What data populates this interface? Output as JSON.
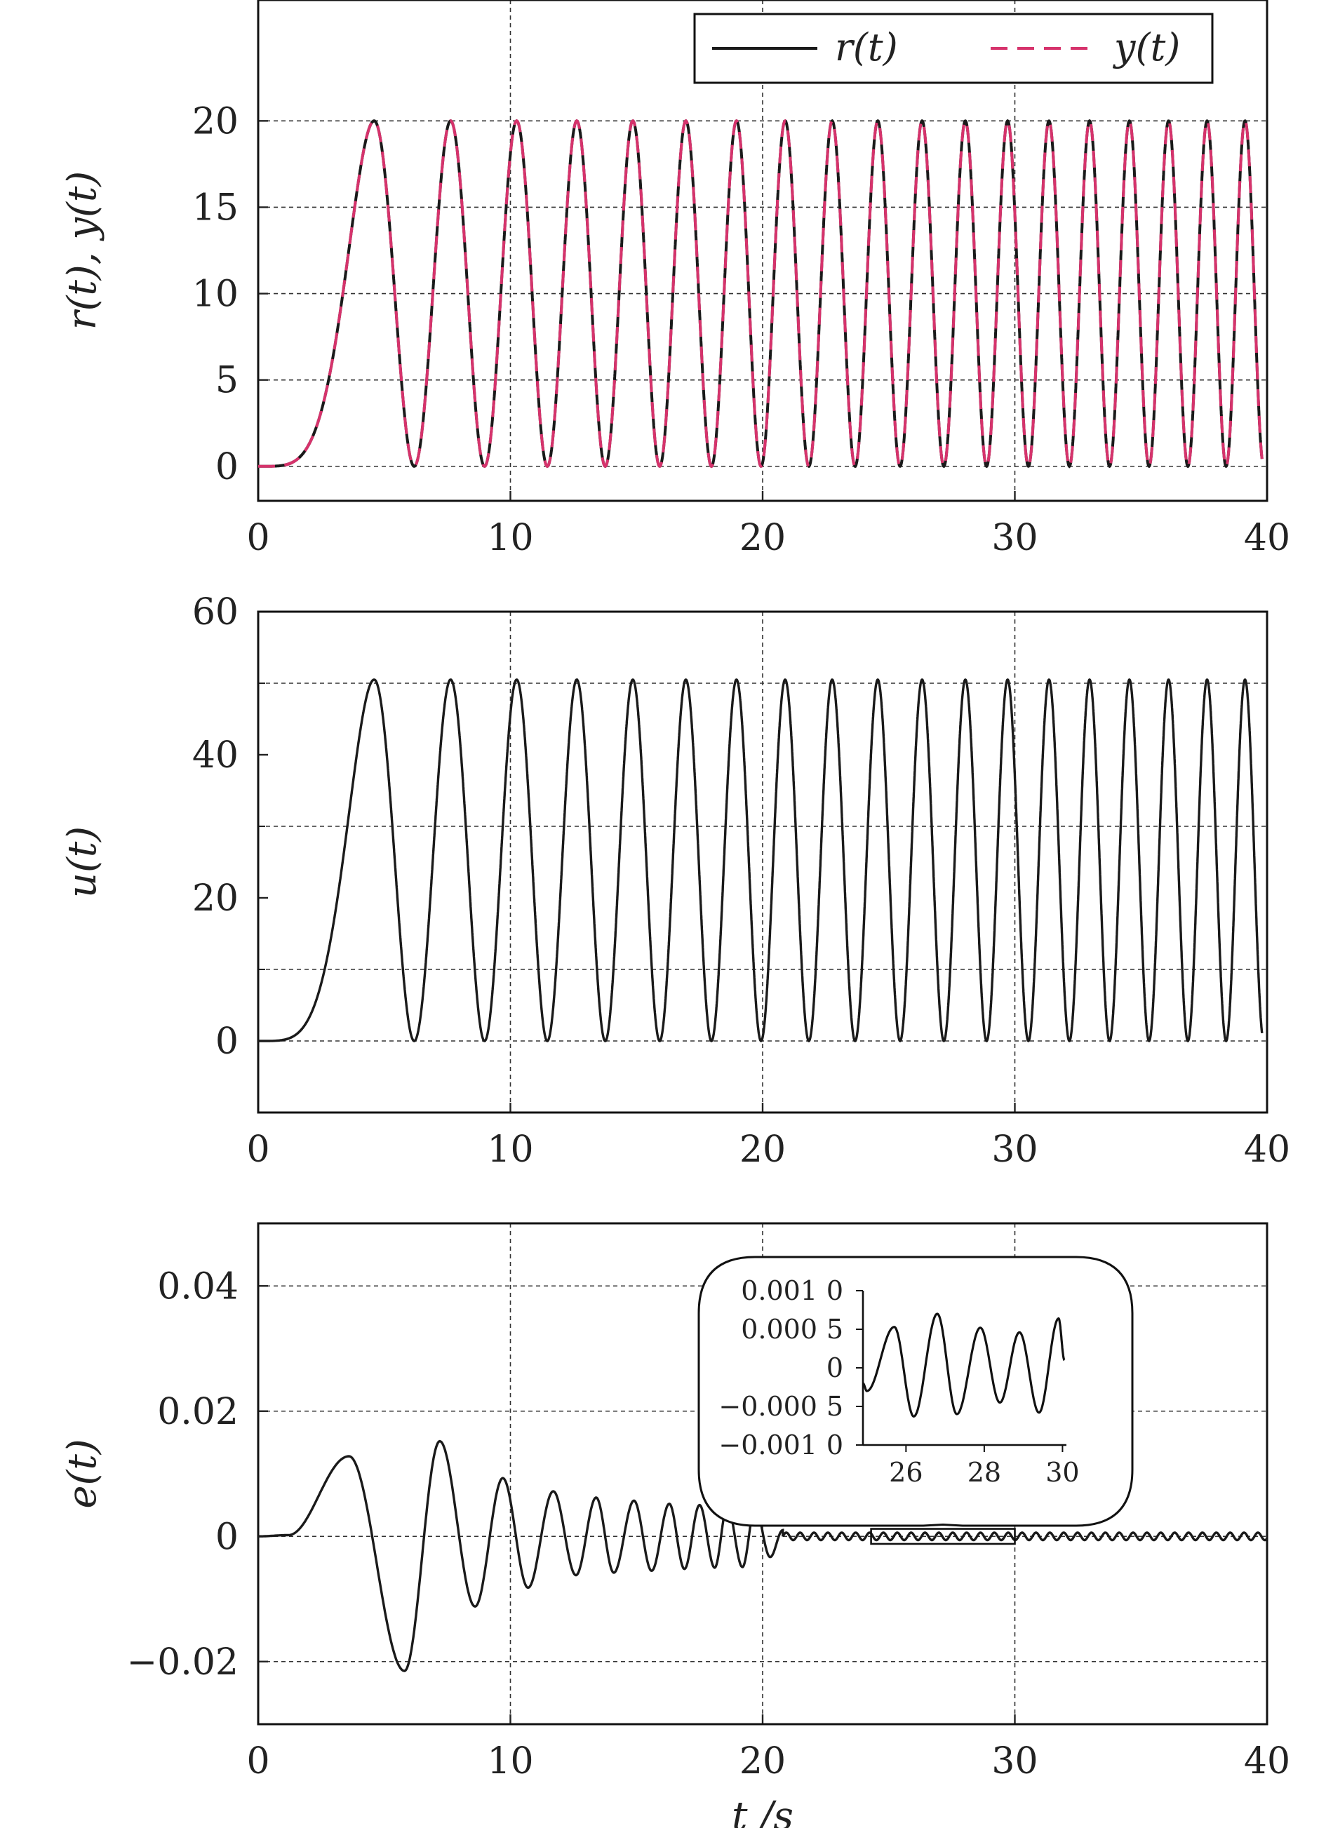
{
  "chart_data": [
    {
      "type": "line",
      "id": "tracking",
      "ylabel": "r(t), y(t)",
      "xlabel": "",
      "xlim": [
        0,
        40
      ],
      "ylim": [
        -2,
        27
      ],
      "xticks": [
        0,
        10,
        20,
        30,
        40
      ],
      "xtick_labels": [
        "0",
        "10",
        "20",
        "30",
        "40"
      ],
      "yticks": [
        0,
        5,
        10,
        15,
        20
      ],
      "ytick_labels": [
        "0",
        "5",
        "10",
        "15",
        "20"
      ],
      "grid": true,
      "legend_position": "top-right",
      "series": [
        {
          "name": "r(t)",
          "style": "solid",
          "color": "#1a1a1a",
          "function": "10*(1-cos(0.03*x*x*x))",
          "note_x_range": [
            0,
            40
          ]
        },
        {
          "name": "y(t)",
          "style": "dashed",
          "color": "#d6336c",
          "function": "same as r(t)",
          "note_x_range": [
            0,
            40
          ]
        }
      ]
    },
    {
      "type": "line",
      "id": "control",
      "ylabel": "u(t)",
      "xlabel": "",
      "xlim": [
        0,
        40
      ],
      "ylim": [
        -10,
        60
      ],
      "xticks": [
        0,
        10,
        20,
        30,
        40
      ],
      "xtick_labels": [
        "0",
        "10",
        "20",
        "30",
        "40"
      ],
      "yticks": [
        0,
        20,
        40,
        60
      ],
      "ytick_labels": [
        "0",
        "20",
        "40",
        "60"
      ],
      "grid_y": [
        0,
        10,
        30,
        50
      ],
      "grid": true,
      "series": [
        {
          "name": "",
          "style": "solid",
          "color": "#1a1a1a",
          "peak": 50.5,
          "trough": 0
        }
      ]
    },
    {
      "type": "line",
      "id": "error",
      "ylabel": "e(t)",
      "xlabel": "t /s",
      "xlim": [
        0,
        40
      ],
      "ylim": [
        -0.03,
        0.05
      ],
      "xticks": [
        0,
        10,
        20,
        30,
        40
      ],
      "xtick_labels": [
        "0",
        "10",
        "20",
        "30",
        "40"
      ],
      "yticks": [
        -0.02,
        0,
        0.02,
        0.04
      ],
      "ytick_labels": [
        "−0.02",
        "0",
        "0.02",
        "0.04"
      ],
      "grid": true,
      "series": [
        {
          "name": "",
          "style": "solid",
          "color": "#1a1a1a",
          "peaks": [
            {
              "x": 3.6,
              "y": 0.0128
            },
            {
              "x": 5.8,
              "y": -0.0215
            },
            {
              "x": 7.2,
              "y": 0.0152
            },
            {
              "x": 8.6,
              "y": -0.0112
            },
            {
              "x": 9.7,
              "y": 0.0093
            },
            {
              "x": 10.7,
              "y": -0.0082
            },
            {
              "x": 11.7,
              "y": 0.0072
            },
            {
              "x": 12.6,
              "y": -0.0062
            },
            {
              "x": 13.4,
              "y": 0.0062
            },
            {
              "x": 14.1,
              "y": -0.0058
            },
            {
              "x": 14.9,
              "y": 0.0057
            },
            {
              "x": 15.6,
              "y": -0.0055
            },
            {
              "x": 16.3,
              "y": 0.0052
            },
            {
              "x": 16.9,
              "y": -0.0052
            },
            {
              "x": 17.5,
              "y": 0.005
            },
            {
              "x": 18.1,
              "y": -0.005
            },
            {
              "x": 18.6,
              "y": 0.0048
            },
            {
              "x": 19.2,
              "y": -0.0049
            },
            {
              "x": 19.7,
              "y": 0.0046
            },
            {
              "x": 20.3,
              "y": -0.0033
            },
            {
              "x": 20.8,
              "y": 0.001
            }
          ],
          "steady_amplitude": 0.0006
        }
      ],
      "inset": {
        "xlim": [
          24.9,
          30.1
        ],
        "ylim": [
          -0.001,
          0.001
        ],
        "xticks": [
          26,
          28,
          30
        ],
        "xtick_labels": [
          "26",
          "28",
          "30"
        ],
        "yticks": [
          -0.001,
          -0.0005,
          0,
          0.0005,
          0.001
        ],
        "ytick_labels_left": [
          "−0.001",
          "−0.000",
          "",
          "0.000",
          "0.001"
        ],
        "ytick_labels_right": [
          "0",
          "5",
          "0",
          "5",
          "0"
        ],
        "zoom_box_x": [
          24.3,
          30.0
        ],
        "peaks": [
          {
            "x": 24.9,
            "y": -0.0002
          },
          {
            "x": 25.0,
            "y": -0.0003
          },
          {
            "x": 25.7,
            "y": 0.00053
          },
          {
            "x": 26.2,
            "y": -0.00063
          },
          {
            "x": 26.8,
            "y": 0.0007
          },
          {
            "x": 27.3,
            "y": -0.0006
          },
          {
            "x": 27.9,
            "y": 0.00052
          },
          {
            "x": 28.4,
            "y": -0.00045
          },
          {
            "x": 28.9,
            "y": 0.00046
          },
          {
            "x": 29.4,
            "y": -0.00058
          },
          {
            "x": 29.9,
            "y": 0.00064
          },
          {
            "x": 30.05,
            "y": 0.0001
          }
        ]
      }
    }
  ]
}
